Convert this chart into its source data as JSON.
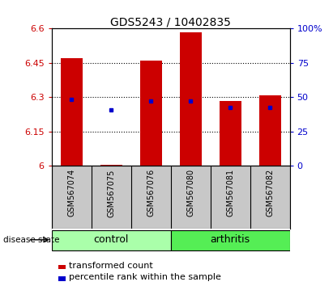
{
  "title": "GDS5243 / 10402835",
  "samples": [
    "GSM567074",
    "GSM567075",
    "GSM567076",
    "GSM567080",
    "GSM567081",
    "GSM567082"
  ],
  "groups": [
    "control",
    "control",
    "control",
    "arthritis",
    "arthritis",
    "arthritis"
  ],
  "bar_values": [
    6.47,
    6.005,
    6.46,
    6.585,
    6.285,
    6.31
  ],
  "bar_base": 6.0,
  "percentile_values": [
    6.29,
    6.245,
    6.285,
    6.285,
    6.255,
    6.255
  ],
  "ylim_left": [
    6.0,
    6.6
  ],
  "ylim_right": [
    0,
    100
  ],
  "yticks_left": [
    6.0,
    6.15,
    6.3,
    6.45,
    6.6
  ],
  "ytick_labels_left": [
    "6",
    "6.15",
    "6.3",
    "6.45",
    "6.6"
  ],
  "yticks_right": [
    0,
    25,
    50,
    75,
    100
  ],
  "ytick_labels_right": [
    "0",
    "25",
    "50",
    "75",
    "100%"
  ],
  "grid_yticks": [
    6.15,
    6.3,
    6.45
  ],
  "bar_color": "#CC0000",
  "percentile_color": "#0000CC",
  "bar_width": 0.55,
  "bg_color": "#FFFFFF",
  "plot_bg_color": "#FFFFFF",
  "label_area_color": "#C8C8C8",
  "group_color_control": "#AAFFAA",
  "group_color_arthritis": "#55EE55",
  "title_fontsize": 10,
  "tick_fontsize": 8,
  "sample_fontsize": 7,
  "group_fontsize": 9,
  "legend_fontsize": 8
}
